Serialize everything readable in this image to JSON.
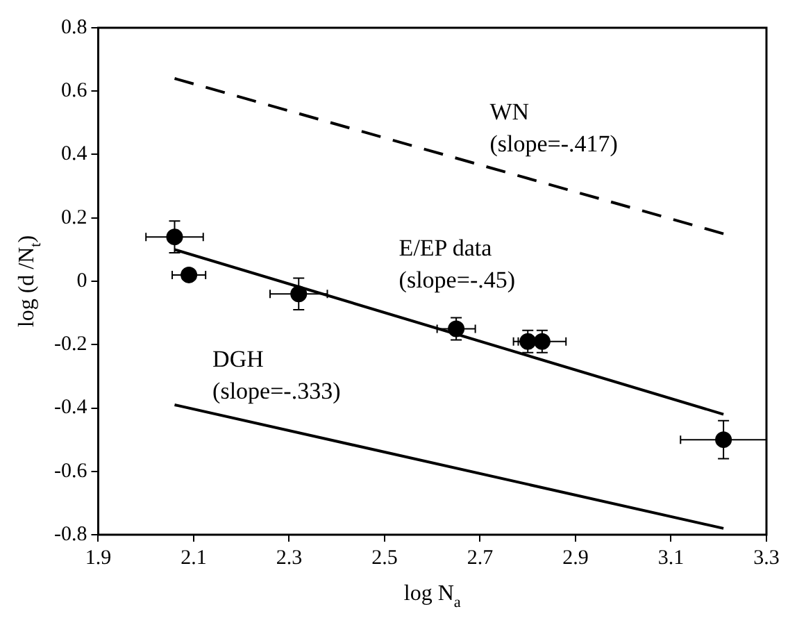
{
  "chart_data": {
    "type": "scatter",
    "xlabel": "log N$_{a}$",
    "ylabel": "log (d /N$_{t}$)",
    "xlim": [
      1.9,
      3.3
    ],
    "xticks": [
      1.9,
      2.1,
      2.3,
      2.5,
      2.7,
      2.9,
      3.1,
      3.3
    ],
    "ylim": [
      -0.8,
      0.8
    ],
    "yticks": [
      -0.8,
      -0.6,
      -0.4,
      -0.2,
      0,
      0.2,
      0.4,
      0.6,
      0.8
    ],
    "grid": false,
    "legend": false,
    "series": [
      {
        "marker": "circle",
        "color": "#000000",
        "x": [
          2.06,
          2.09,
          2.32,
          2.65,
          2.8,
          2.83,
          3.21
        ],
        "values": [
          0.14,
          0.02,
          -0.04,
          -0.15,
          -0.19,
          -0.19,
          -0.5
        ],
        "errors": [
          0.05,
          null,
          0.05,
          0.035,
          0.035,
          0.035,
          0.06
        ],
        "xerrors": [
          0.06,
          0.035,
          0.06,
          0.04,
          0.03,
          0.05,
          0.09
        ]
      },
      {
        "type": "line",
        "marker": "none",
        "color": "#000000",
        "line_style": "solid",
        "x": [
          2.06,
          3.21
        ],
        "values": [
          0.1,
          -0.42
        ]
      },
      {
        "type": "line",
        "marker": "none",
        "color": "#000000",
        "line_style": "dashed",
        "x": [
          2.06,
          3.21
        ],
        "values": [
          0.64,
          0.15
        ]
      },
      {
        "type": "line",
        "marker": "none",
        "color": "#000000",
        "line_style": "solid",
        "x": [
          2.06,
          3.21
        ],
        "values": [
          -0.39,
          -0.78
        ]
      }
    ],
    "annotations": [
      "WN",
      "(slope=-.417)",
      "E/EP data",
      "(slope=-.45)",
      "DGH",
      "(slope=-.333)"
    ]
  }
}
